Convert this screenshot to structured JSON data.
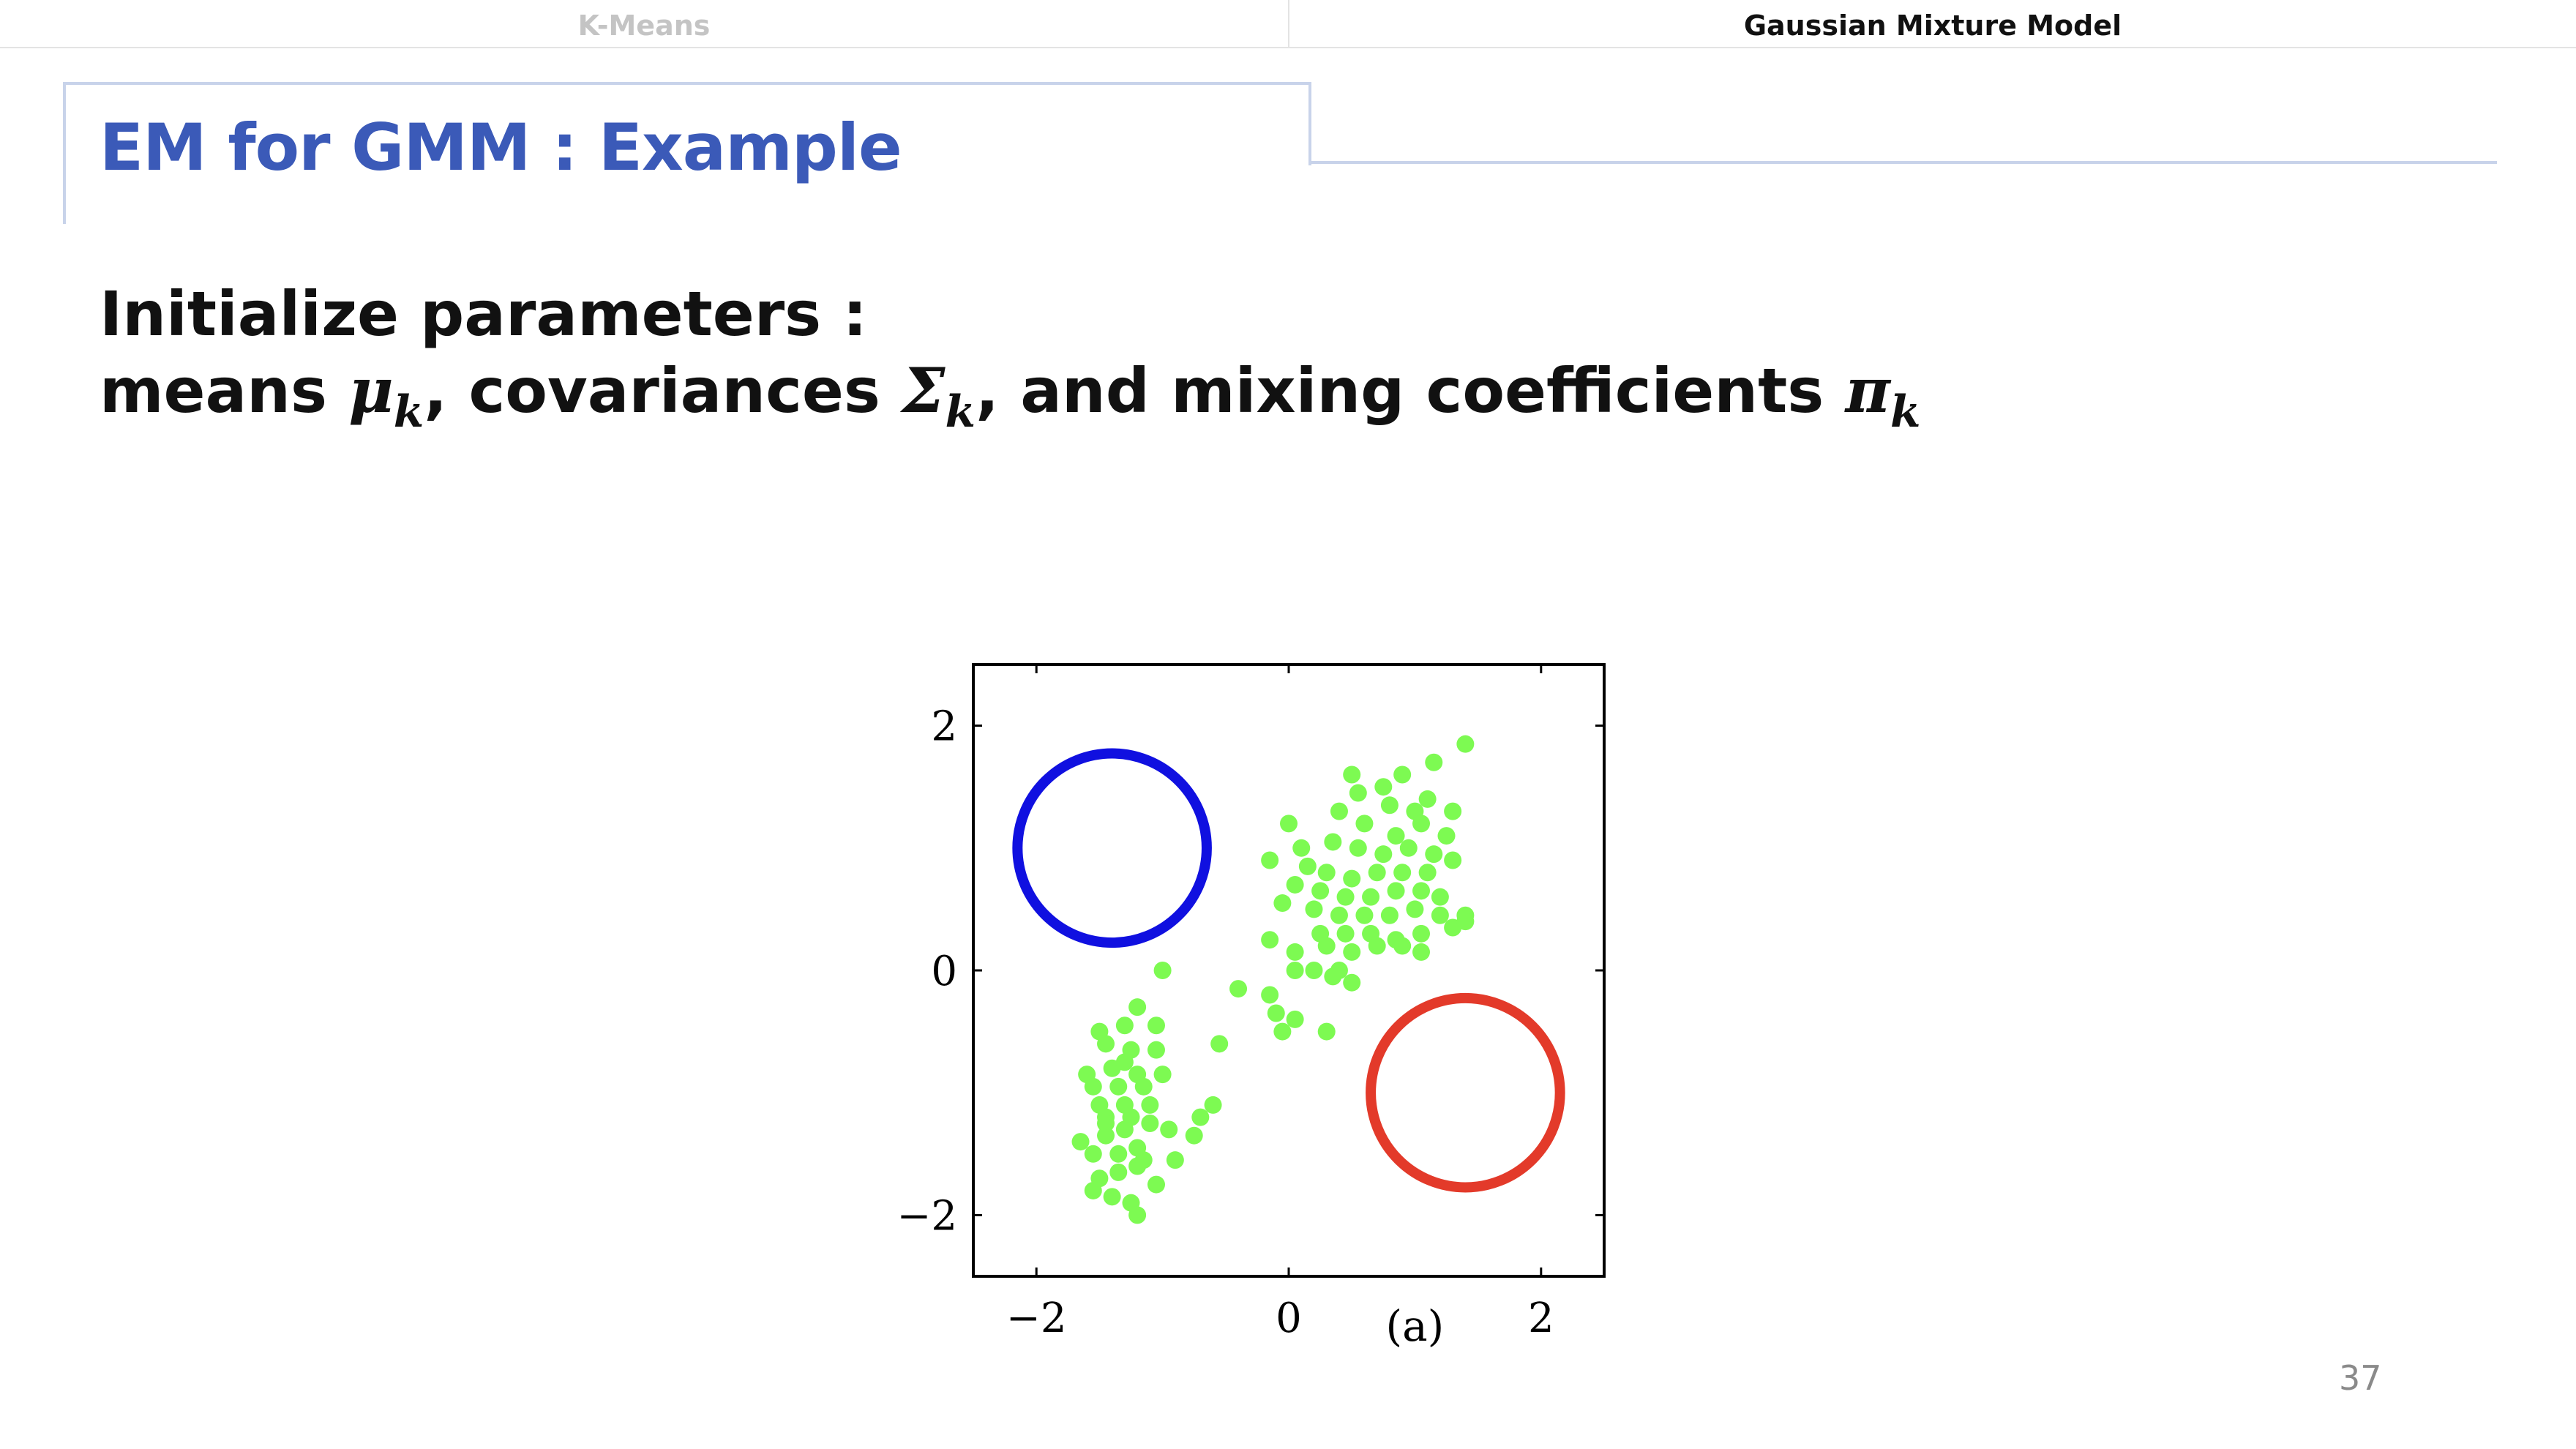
{
  "tabs": [
    {
      "label": "K-Means",
      "active": false
    },
    {
      "label": "Gaussian Mixture Model",
      "active": true
    }
  ],
  "slide": {
    "title": "EM for GMM : Example",
    "line1": "Initialize parameters :",
    "line2_parts": {
      "means": "means ",
      "mu": "μ",
      "k1": "k",
      "covariances": ", covariances ",
      "sigma": "Σ",
      "k2": "k",
      "mixing": ", and mixing coefficients ",
      "pi": "π",
      "k3": "k"
    },
    "page_number": "37"
  },
  "colors": {
    "title": "#3b5ab8",
    "points": "#7dfa52",
    "blue_component": "#1010e0",
    "red_component": "#e33a2a"
  },
  "chart_data": {
    "type": "scatter",
    "title": "",
    "subtitle": "(a)",
    "xlabel": "",
    "ylabel": "",
    "xlim": [
      -2.5,
      2.5
    ],
    "ylim": [
      -2.5,
      2.5
    ],
    "xticks": [
      "−2",
      "0",
      "2"
    ],
    "yticks": [
      "2",
      "0",
      "−2"
    ],
    "tick_values": [
      -2,
      0,
      2
    ],
    "grid": false,
    "series": [
      {
        "values": [
          [
            0.5,
            1.6
          ],
          [
            0.9,
            1.6
          ],
          [
            1.15,
            1.7
          ],
          [
            1.4,
            1.85
          ],
          [
            0.55,
            1.45
          ],
          [
            0.75,
            1.5
          ],
          [
            0.8,
            1.35
          ],
          [
            1.0,
            1.3
          ],
          [
            1.1,
            1.4
          ],
          [
            1.3,
            1.3
          ],
          [
            0.0,
            1.2
          ],
          [
            0.4,
            1.3
          ],
          [
            0.6,
            1.2
          ],
          [
            0.85,
            1.1
          ],
          [
            1.05,
            1.2
          ],
          [
            1.25,
            1.1
          ],
          [
            0.1,
            1.0
          ],
          [
            0.35,
            1.05
          ],
          [
            0.55,
            1.0
          ],
          [
            0.75,
            0.95
          ],
          [
            0.95,
            1.0
          ],
          [
            1.15,
            0.95
          ],
          [
            1.3,
            0.9
          ],
          [
            -0.15,
            0.9
          ],
          [
            0.15,
            0.85
          ],
          [
            0.3,
            0.8
          ],
          [
            0.5,
            0.75
          ],
          [
            0.7,
            0.8
          ],
          [
            0.9,
            0.8
          ],
          [
            1.1,
            0.8
          ],
          [
            0.05,
            0.7
          ],
          [
            0.25,
            0.65
          ],
          [
            0.45,
            0.6
          ],
          [
            0.65,
            0.6
          ],
          [
            0.85,
            0.65
          ],
          [
            1.05,
            0.65
          ],
          [
            1.2,
            0.6
          ],
          [
            -0.05,
            0.55
          ],
          [
            0.2,
            0.5
          ],
          [
            0.4,
            0.45
          ],
          [
            0.6,
            0.45
          ],
          [
            0.8,
            0.45
          ],
          [
            1.0,
            0.5
          ],
          [
            1.2,
            0.45
          ],
          [
            1.4,
            0.45
          ],
          [
            0.25,
            0.3
          ],
          [
            0.45,
            0.3
          ],
          [
            0.65,
            0.3
          ],
          [
            0.85,
            0.25
          ],
          [
            1.05,
            0.3
          ],
          [
            1.3,
            0.35
          ],
          [
            -0.15,
            0.25
          ],
          [
            0.05,
            0.15
          ],
          [
            0.3,
            0.2
          ],
          [
            0.5,
            0.15
          ],
          [
            0.7,
            0.2
          ],
          [
            0.9,
            0.2
          ],
          [
            1.05,
            0.15
          ],
          [
            0.05,
            0.0
          ],
          [
            0.2,
            0.0
          ],
          [
            0.4,
            0.0
          ],
          [
            0.5,
            -0.1
          ],
          [
            0.35,
            -0.05
          ],
          [
            -0.4,
            -0.15
          ],
          [
            -0.15,
            -0.2
          ],
          [
            -0.1,
            -0.35
          ],
          [
            -0.05,
            -0.5
          ],
          [
            0.05,
            -0.4
          ],
          [
            0.3,
            -0.5
          ],
          [
            1.4,
            0.4
          ],
          [
            -1.0,
            0.0
          ],
          [
            -1.2,
            -0.3
          ],
          [
            -1.3,
            -0.45
          ],
          [
            -1.5,
            -0.5
          ],
          [
            -1.05,
            -0.45
          ],
          [
            -1.45,
            -0.6
          ],
          [
            -1.25,
            -0.65
          ],
          [
            -1.05,
            -0.65
          ],
          [
            -1.6,
            -0.85
          ],
          [
            -1.4,
            -0.8
          ],
          [
            -1.2,
            -0.85
          ],
          [
            -1.0,
            -0.85
          ],
          [
            -1.55,
            -0.95
          ],
          [
            -1.35,
            -0.95
          ],
          [
            -1.15,
            -0.95
          ],
          [
            -1.5,
            -1.1
          ],
          [
            -1.3,
            -1.1
          ],
          [
            -1.1,
            -1.1
          ],
          [
            -1.45,
            -1.2
          ],
          [
            -1.25,
            -1.2
          ],
          [
            -1.65,
            -1.4
          ],
          [
            -1.45,
            -1.35
          ],
          [
            -1.3,
            -1.3
          ],
          [
            -1.1,
            -1.25
          ],
          [
            -0.95,
            -1.3
          ],
          [
            -1.55,
            -1.5
          ],
          [
            -1.35,
            -1.5
          ],
          [
            -1.2,
            -1.45
          ],
          [
            -1.5,
            -1.7
          ],
          [
            -1.35,
            -1.65
          ],
          [
            -1.2,
            -1.6
          ],
          [
            -1.05,
            -1.75
          ],
          [
            -1.55,
            -1.8
          ],
          [
            -1.4,
            -1.85
          ],
          [
            -1.25,
            -1.9
          ],
          [
            -1.2,
            -2.0
          ],
          [
            -0.9,
            -1.55
          ],
          [
            -0.75,
            -1.35
          ],
          [
            -0.6,
            -1.1
          ],
          [
            -0.55,
            -0.6
          ],
          [
            -0.7,
            -1.2
          ],
          [
            -1.15,
            -1.55
          ],
          [
            -1.45,
            -1.25
          ],
          [
            -1.3,
            -0.75
          ]
        ]
      }
    ],
    "components": [
      {
        "name": "blue",
        "mean": [
          -1.4,
          1.0
        ],
        "radius": 0.75
      },
      {
        "name": "red",
        "mean": [
          1.4,
          -1.0
        ],
        "radius": 0.75
      }
    ]
  }
}
